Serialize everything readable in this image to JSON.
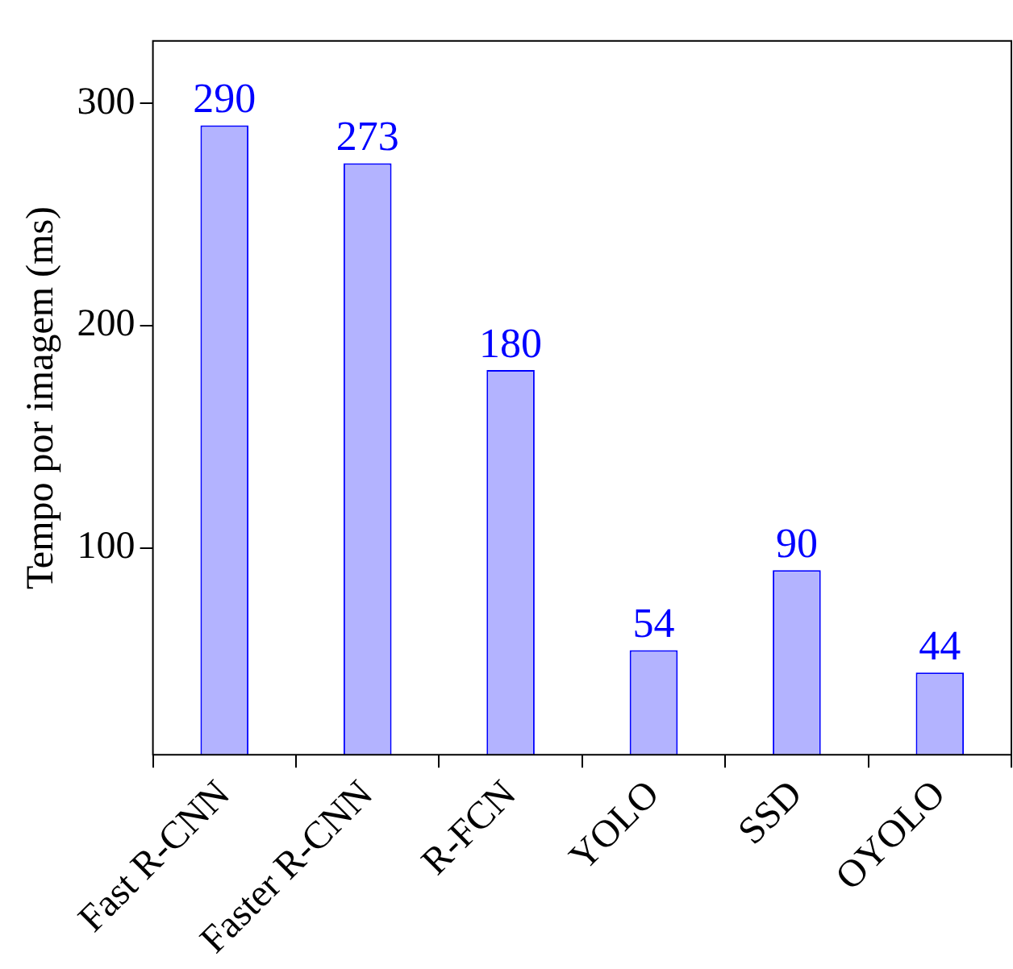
{
  "chart_data": {
    "type": "bar",
    "ylabel": "Tempo por imagem (ms)",
    "categories": [
      "Fast R-CNN",
      "Faster R-CNN",
      "R-FCN",
      "YOLO",
      "SSD",
      "OYOLO"
    ],
    "values": [
      290,
      273,
      180,
      54,
      90,
      44
    ],
    "color": "#b3b3ff",
    "ylim": [
      7,
      328
    ],
    "yticks": [
      100,
      200,
      300
    ],
    "data_labels": true,
    "grid": false,
    "legend": false
  }
}
